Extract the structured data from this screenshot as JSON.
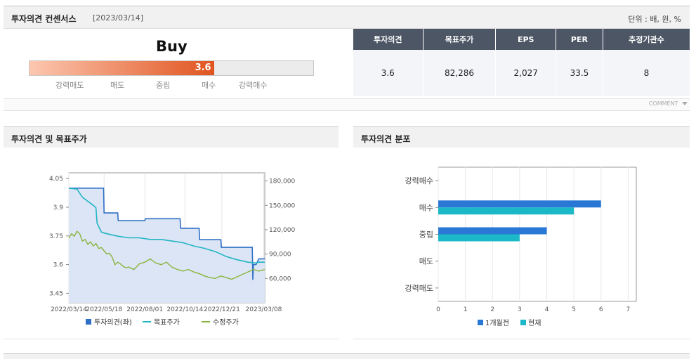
{
  "consensus": {
    "title": "투자의견 컨센서스",
    "date": "[2023/03/14]",
    "unit": "단위 : 배, 원, %",
    "opinion_word": "Buy",
    "opinion_value": "3.6",
    "opinion_score": 3.6,
    "scale_labels": [
      "강력매도",
      "매도",
      "중립",
      "매수",
      "강력매수"
    ],
    "table_headers": [
      "투자의견",
      "목표주가",
      "EPS",
      "PER",
      "추정기관수"
    ],
    "table_values": [
      "3.6",
      "82,286",
      "2,027",
      "33.5",
      "8"
    ],
    "comment_label": "COMMENT"
  },
  "colors": {
    "bar_gradient_start": "#fcc7b0",
    "bar_gradient_end": "#e0541f",
    "opinion_line": "#2f6fc6",
    "target_line": "#21b5c4",
    "price_line": "#8ab43c",
    "prev_month_bar": "#2a78d6",
    "current_bar": "#1bb8c7",
    "area_fill": "#dbe5f5"
  },
  "chart_data": [
    {
      "type": "line",
      "title": "투자의견 및 목표주가",
      "x_ticks": [
        "2022/03/14",
        "2022/05/18",
        "2022/08/01",
        "2022/10/14",
        "2022/12/21",
        "2023/03/08"
      ],
      "y_left_ticks": [
        "4.05",
        "3.9",
        "3.75",
        "3.6",
        "3.45"
      ],
      "y_left_lim": [
        3.4,
        4.08
      ],
      "y_right_ticks": [
        "180,000",
        "150,000",
        "120,000",
        "90,000",
        "60,000"
      ],
      "y_right_lim": [
        30000,
        190000
      ],
      "legend": [
        "투자의견(좌)",
        "목표주가",
        "수정주가"
      ],
      "x_days": [
        0,
        30,
        31,
        65,
        66,
        80,
        95,
        105,
        106,
        135,
        136,
        165,
        166,
        205,
        206,
        250,
        251,
        270,
        271,
        285,
        286,
        300,
        301,
        350,
        351,
        361
      ],
      "series": [
        {
          "name": "투자의견(좌)",
          "axis": "left",
          "x": [
            0,
            64,
            65,
            90,
            91,
            140,
            141,
            205,
            206,
            240,
            241,
            280,
            281,
            338,
            339,
            340,
            345,
            350,
            351,
            361
          ],
          "values": [
            4.0,
            4.0,
            3.87,
            3.87,
            3.83,
            3.83,
            3.84,
            3.84,
            3.79,
            3.79,
            3.73,
            3.73,
            3.69,
            3.69,
            3.52,
            3.6,
            3.6,
            3.63,
            3.63,
            3.63
          ]
        },
        {
          "name": "목표주가",
          "axis": "right",
          "x": [
            0,
            15,
            25,
            35,
            45,
            50,
            52,
            60,
            70,
            90,
            110,
            130,
            150,
            170,
            190,
            210,
            230,
            250,
            270,
            290,
            310,
            330,
            345,
            350,
            361
          ],
          "values": [
            171000,
            170000,
            160000,
            155000,
            150000,
            147000,
            128000,
            117000,
            115000,
            112000,
            110000,
            110000,
            108000,
            108000,
            106000,
            104000,
            100000,
            97000,
            93000,
            87000,
            83000,
            80000,
            79000,
            80000,
            80000
          ]
        },
        {
          "name": "수정주가",
          "axis": "right",
          "x": [
            0,
            5,
            10,
            15,
            20,
            25,
            30,
            35,
            40,
            45,
            50,
            55,
            60,
            65,
            70,
            75,
            80,
            85,
            90,
            95,
            100,
            105,
            110,
            120,
            130,
            140,
            150,
            160,
            170,
            180,
            190,
            200,
            210,
            220,
            230,
            240,
            250,
            260,
            270,
            280,
            290,
            300,
            310,
            320,
            330,
            340,
            350,
            361
          ],
          "values": [
            110000,
            115000,
            112000,
            118000,
            115000,
            106000,
            108000,
            102000,
            105000,
            100000,
            103000,
            97000,
            98000,
            94000,
            90000,
            91000,
            86000,
            77000,
            80000,
            78000,
            75000,
            73000,
            74000,
            71000,
            78000,
            80000,
            84000,
            79000,
            77000,
            80000,
            74000,
            71000,
            69000,
            71000,
            68000,
            66000,
            63000,
            61000,
            60000,
            63000,
            61000,
            59000,
            62000,
            65000,
            68000,
            71000,
            69000,
            71000
          ]
        }
      ]
    },
    {
      "type": "bar",
      "orientation": "horizontal",
      "title": "투자의견 분포",
      "categories": [
        "강력매수",
        "매수",
        "중립",
        "매도",
        "강력매도"
      ],
      "xlim": [
        0,
        7
      ],
      "x_ticks": [
        "0",
        "1",
        "2",
        "3",
        "4",
        "5",
        "6",
        "7"
      ],
      "series": [
        {
          "name": "1개월전",
          "values": [
            0,
            6,
            4,
            0,
            0
          ]
        },
        {
          "name": "현재",
          "values": [
            0,
            5,
            3,
            0,
            0
          ]
        }
      ]
    }
  ]
}
